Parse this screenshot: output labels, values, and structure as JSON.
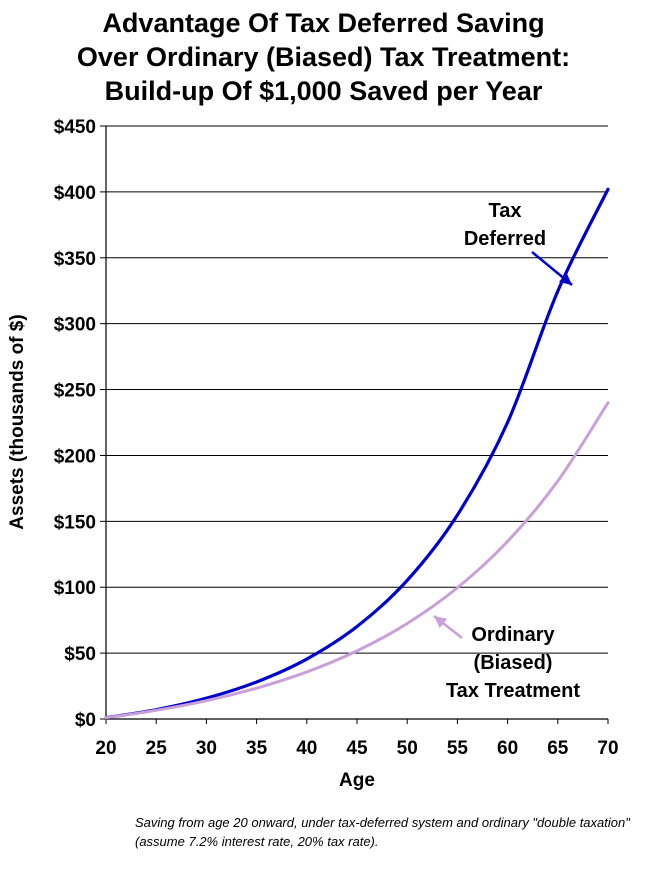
{
  "chart_data": {
    "type": "line",
    "title_lines": [
      "Advantage Of Tax Deferred Saving",
      "Over Ordinary (Biased) Tax Treatment:",
      "Build-up Of $1,000 Saved per Year"
    ],
    "xlabel": "Age",
    "ylabel": "Assets (thousands of $)",
    "xlim": [
      20,
      70
    ],
    "ylim": [
      0,
      450
    ],
    "x_ticks": [
      "20",
      "25",
      "30",
      "35",
      "40",
      "45",
      "50",
      "55",
      "60",
      "65",
      "70"
    ],
    "y_ticks": [
      "$0",
      "$50",
      "$100",
      "$150",
      "$200",
      "$250",
      "$300",
      "$350",
      "$400",
      "$450"
    ],
    "grid": "horizontal",
    "x": [
      20,
      25,
      30,
      35,
      40,
      45,
      50,
      55,
      60,
      65,
      70
    ],
    "series": [
      {
        "name": "Tax Deferred",
        "color": "#0000cc",
        "values": [
          1.0,
          7.1,
          15.8,
          28.1,
          45.5,
          70.2,
          105.2,
          154.8,
          225.1,
          324.7,
          402.0
        ]
      },
      {
        "name": "Ordinary (Biased) Tax Treatment",
        "color": "#c9a0d8",
        "values": [
          1.0,
          6.6,
          13.9,
          23.4,
          35.7,
          51.7,
          72.5,
          99.6,
          134.8,
          180.6,
          240.0
        ]
      }
    ],
    "annotations": [
      {
        "lines": [
          "Tax",
          "Deferred"
        ],
        "series": 0
      },
      {
        "lines": [
          "Ordinary",
          "(Biased)",
          "Tax Treatment"
        ],
        "series": 1
      }
    ]
  },
  "caption": "Saving from age 20 onward, under tax-deferred system and  ordinary \"double taxation\" (assume 7.2% interest rate, 20% tax rate)."
}
